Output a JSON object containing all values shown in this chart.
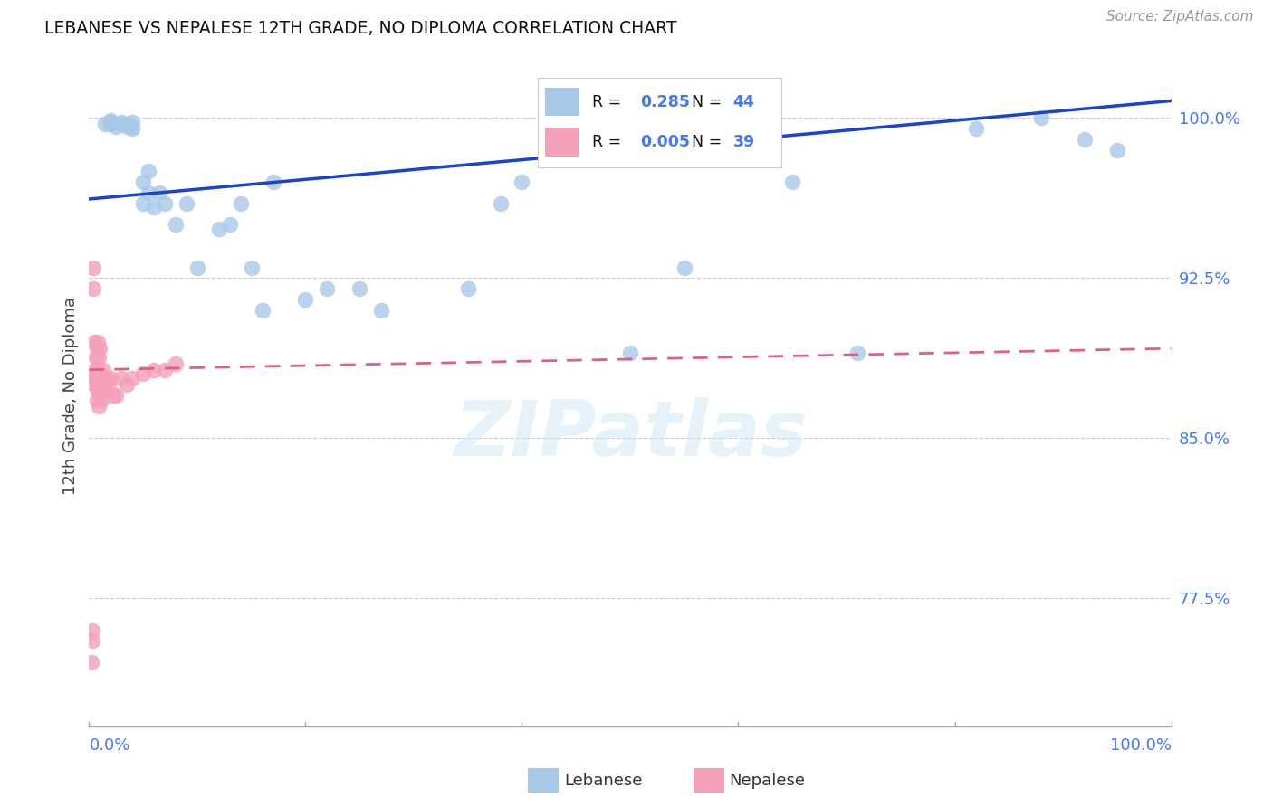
{
  "title": "LEBANESE VS NEPALESE 12TH GRADE, NO DIPLOMA CORRELATION CHART",
  "source": "Source: ZipAtlas.com",
  "ylabel": "12th Grade, No Diploma",
  "legend_blue_r": "0.285",
  "legend_blue_n": "44",
  "legend_pink_r": "0.005",
  "legend_pink_n": "39",
  "ytick_vals": [
    0.775,
    0.85,
    0.925,
    1.0
  ],
  "ytick_labels": [
    "77.5%",
    "85.0%",
    "92.5%",
    "100.0%"
  ],
  "xlim": [
    0.0,
    1.0
  ],
  "ylim": [
    0.715,
    1.025
  ],
  "blue_color": "#a8c8e8",
  "pink_color": "#f4a0b8",
  "blue_line_color": "#1a44cc",
  "pink_line_color": "#e06080",
  "watermark_color": "#d0e8f5",
  "blue_scatter_x": [
    0.015,
    0.02,
    0.02,
    0.02,
    0.025,
    0.03,
    0.03,
    0.035,
    0.035,
    0.04,
    0.04,
    0.04,
    0.05,
    0.05,
    0.055,
    0.055,
    0.06,
    0.065,
    0.07,
    0.08,
    0.09,
    0.1,
    0.12,
    0.13,
    0.14,
    0.15,
    0.16,
    0.17,
    0.2,
    0.22,
    0.25,
    0.27,
    0.35,
    0.38,
    0.4,
    0.5,
    0.55,
    0.6,
    0.65,
    0.71,
    0.82,
    0.88,
    0.92,
    0.95
  ],
  "blue_scatter_y": [
    0.997,
    0.997,
    0.998,
    0.999,
    0.996,
    0.997,
    0.998,
    0.996,
    0.997,
    0.995,
    0.996,
    0.998,
    0.96,
    0.97,
    0.965,
    0.975,
    0.958,
    0.965,
    0.96,
    0.95,
    0.96,
    0.93,
    0.948,
    0.95,
    0.96,
    0.93,
    0.91,
    0.97,
    0.915,
    0.92,
    0.92,
    0.91,
    0.92,
    0.96,
    0.97,
    0.89,
    0.93,
    1.0,
    0.97,
    0.89,
    0.995,
    1.0,
    0.99,
    0.985
  ],
  "pink_scatter_x": [
    0.002,
    0.003,
    0.003,
    0.004,
    0.004,
    0.005,
    0.005,
    0.005,
    0.006,
    0.006,
    0.007,
    0.007,
    0.007,
    0.008,
    0.008,
    0.008,
    0.009,
    0.009,
    0.009,
    0.01,
    0.01,
    0.01,
    0.011,
    0.011,
    0.012,
    0.013,
    0.015,
    0.016,
    0.018,
    0.02,
    0.022,
    0.025,
    0.03,
    0.035,
    0.04,
    0.05,
    0.06,
    0.07,
    0.08
  ],
  "pink_scatter_y": [
    0.745,
    0.755,
    0.76,
    0.92,
    0.93,
    0.875,
    0.882,
    0.895,
    0.878,
    0.888,
    0.868,
    0.878,
    0.892,
    0.872,
    0.882,
    0.895,
    0.865,
    0.875,
    0.888,
    0.87,
    0.88,
    0.892,
    0.868,
    0.878,
    0.875,
    0.882,
    0.872,
    0.878,
    0.875,
    0.878,
    0.87,
    0.87,
    0.878,
    0.875,
    0.878,
    0.88,
    0.882,
    0.882,
    0.885
  ],
  "blue_line_x0": 0.0,
  "blue_line_x1": 1.0,
  "blue_line_y0": 0.962,
  "blue_line_y1": 1.008,
  "pink_line_x0": 0.0,
  "pink_line_x1": 1.0,
  "pink_line_y0": 0.882,
  "pink_line_y1": 0.892,
  "xtick_positions": [
    0.0,
    0.2,
    0.4,
    0.6,
    0.8,
    1.0
  ]
}
